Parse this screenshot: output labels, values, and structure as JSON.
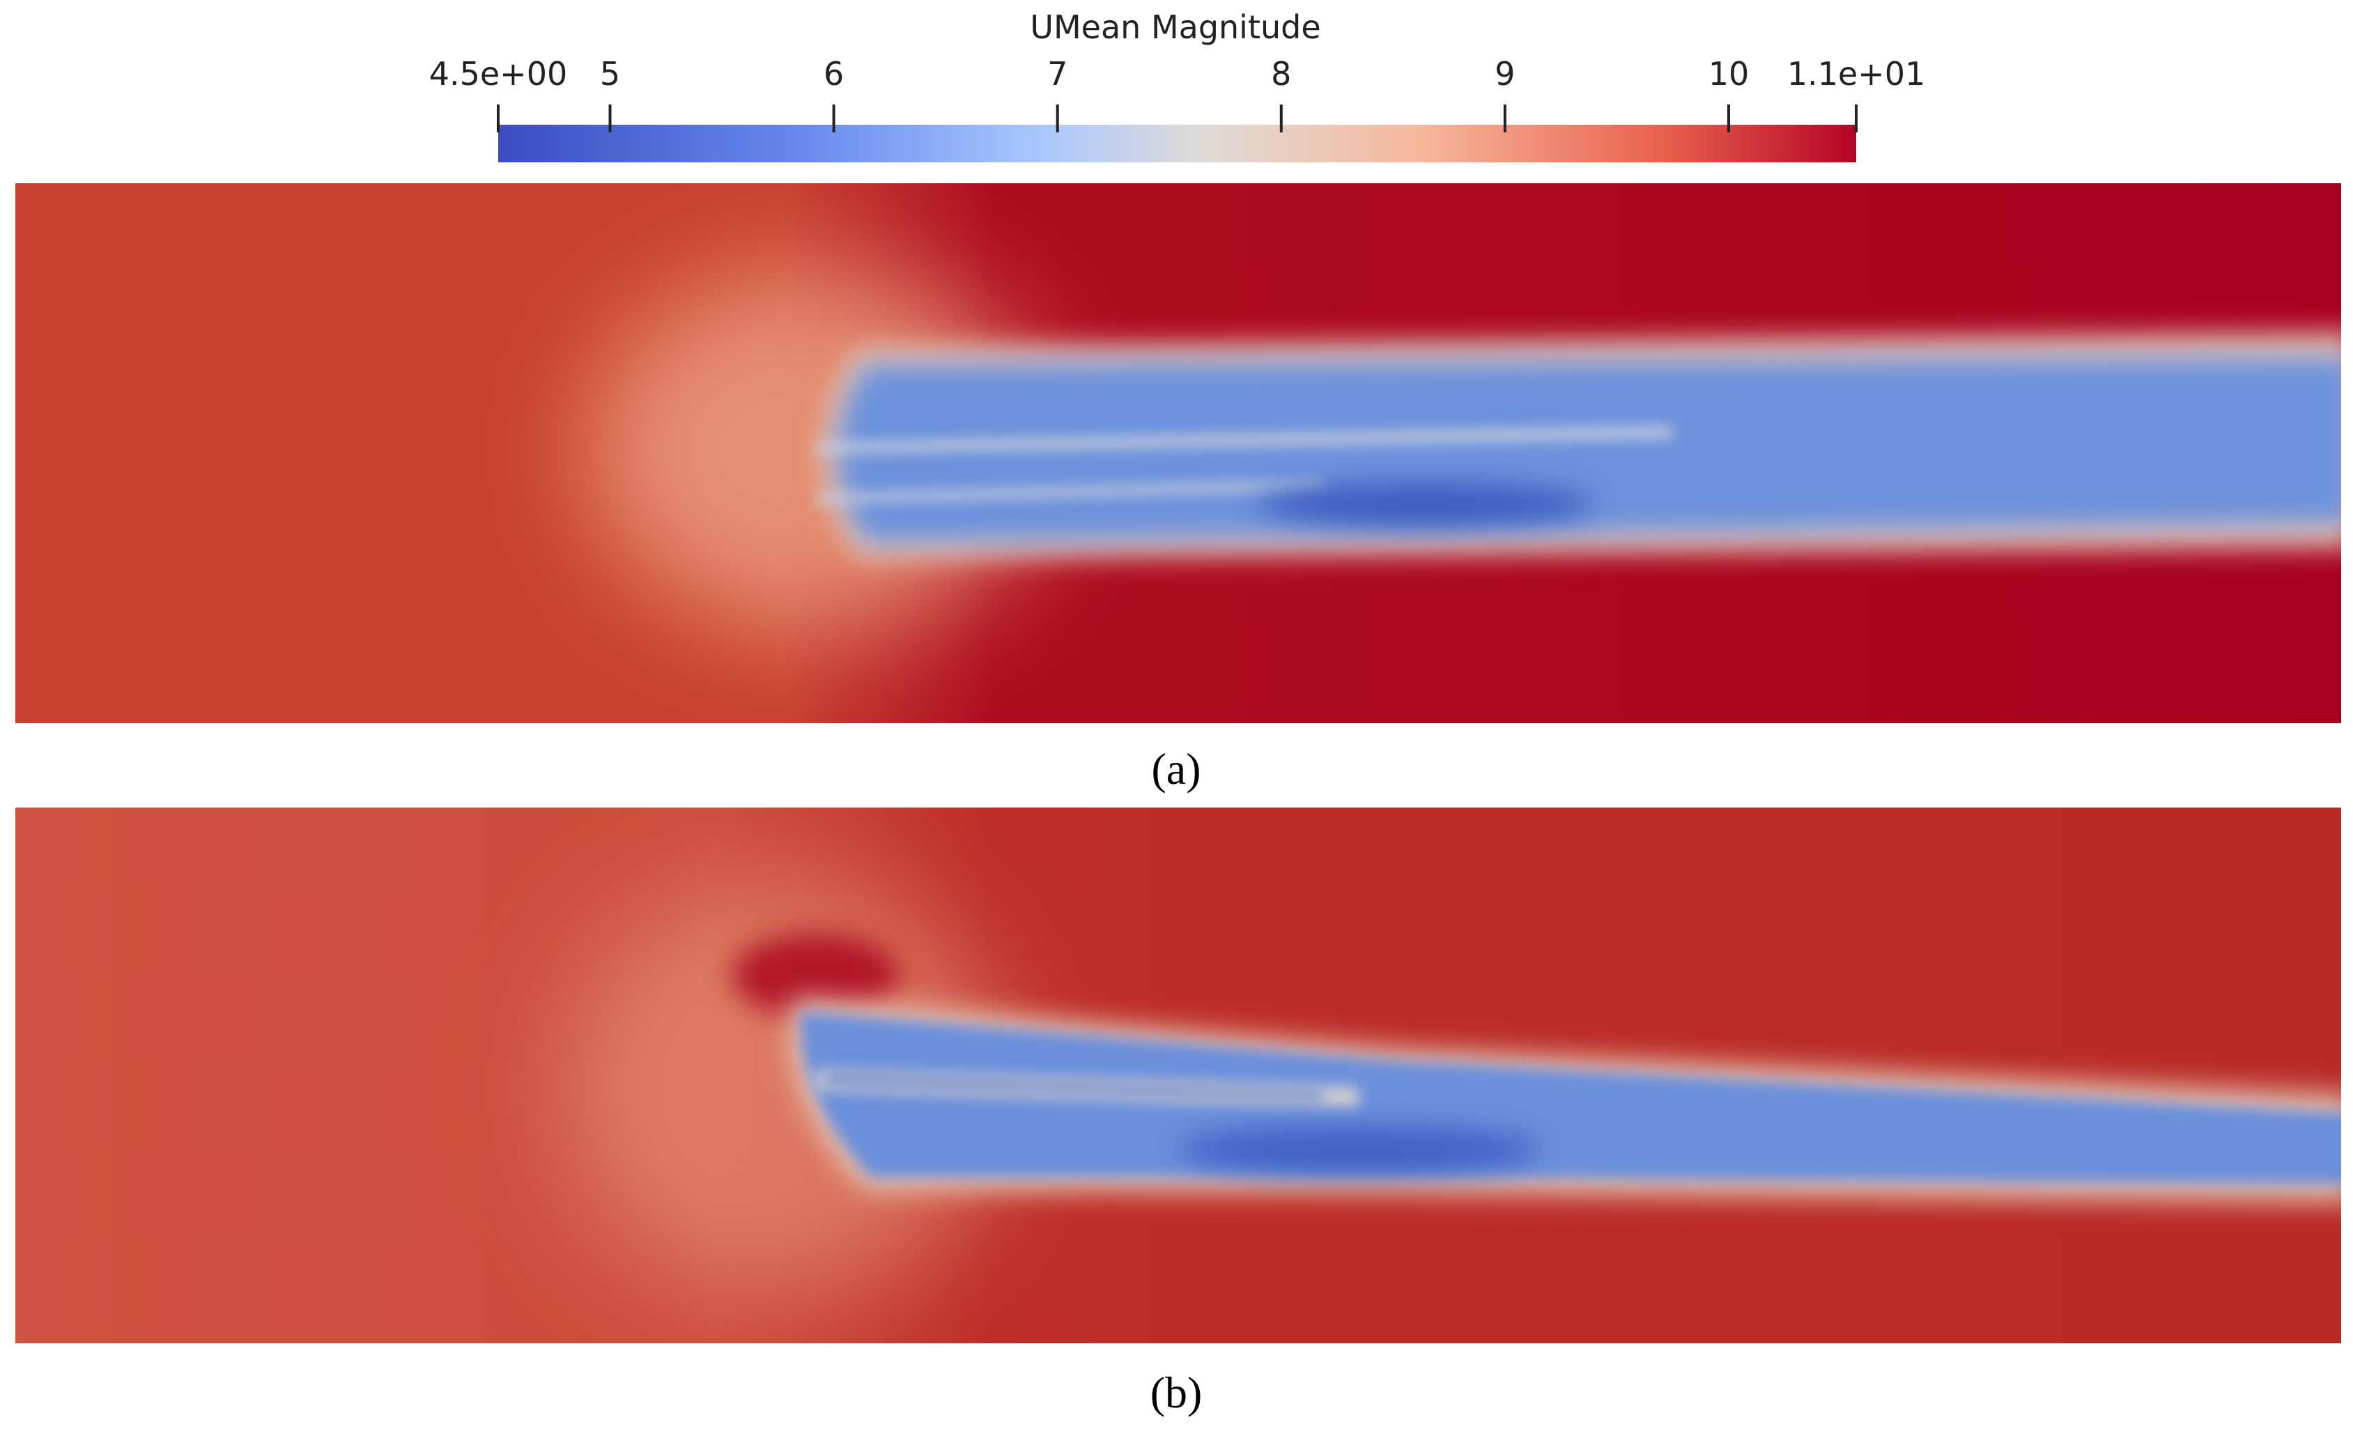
{
  "colorbar": {
    "title": "UMean Magnitude",
    "range": [
      4.5,
      10.57
    ],
    "ticks": [
      {
        "value": 4.5,
        "label": "4.5e+00"
      },
      5,
      6,
      7,
      8,
      9,
      10,
      {
        "value": 10.57,
        "label": "1.1e+01"
      }
    ]
  },
  "panels": [
    {
      "label": "(a)"
    },
    {
      "label": "(b)"
    }
  ]
}
